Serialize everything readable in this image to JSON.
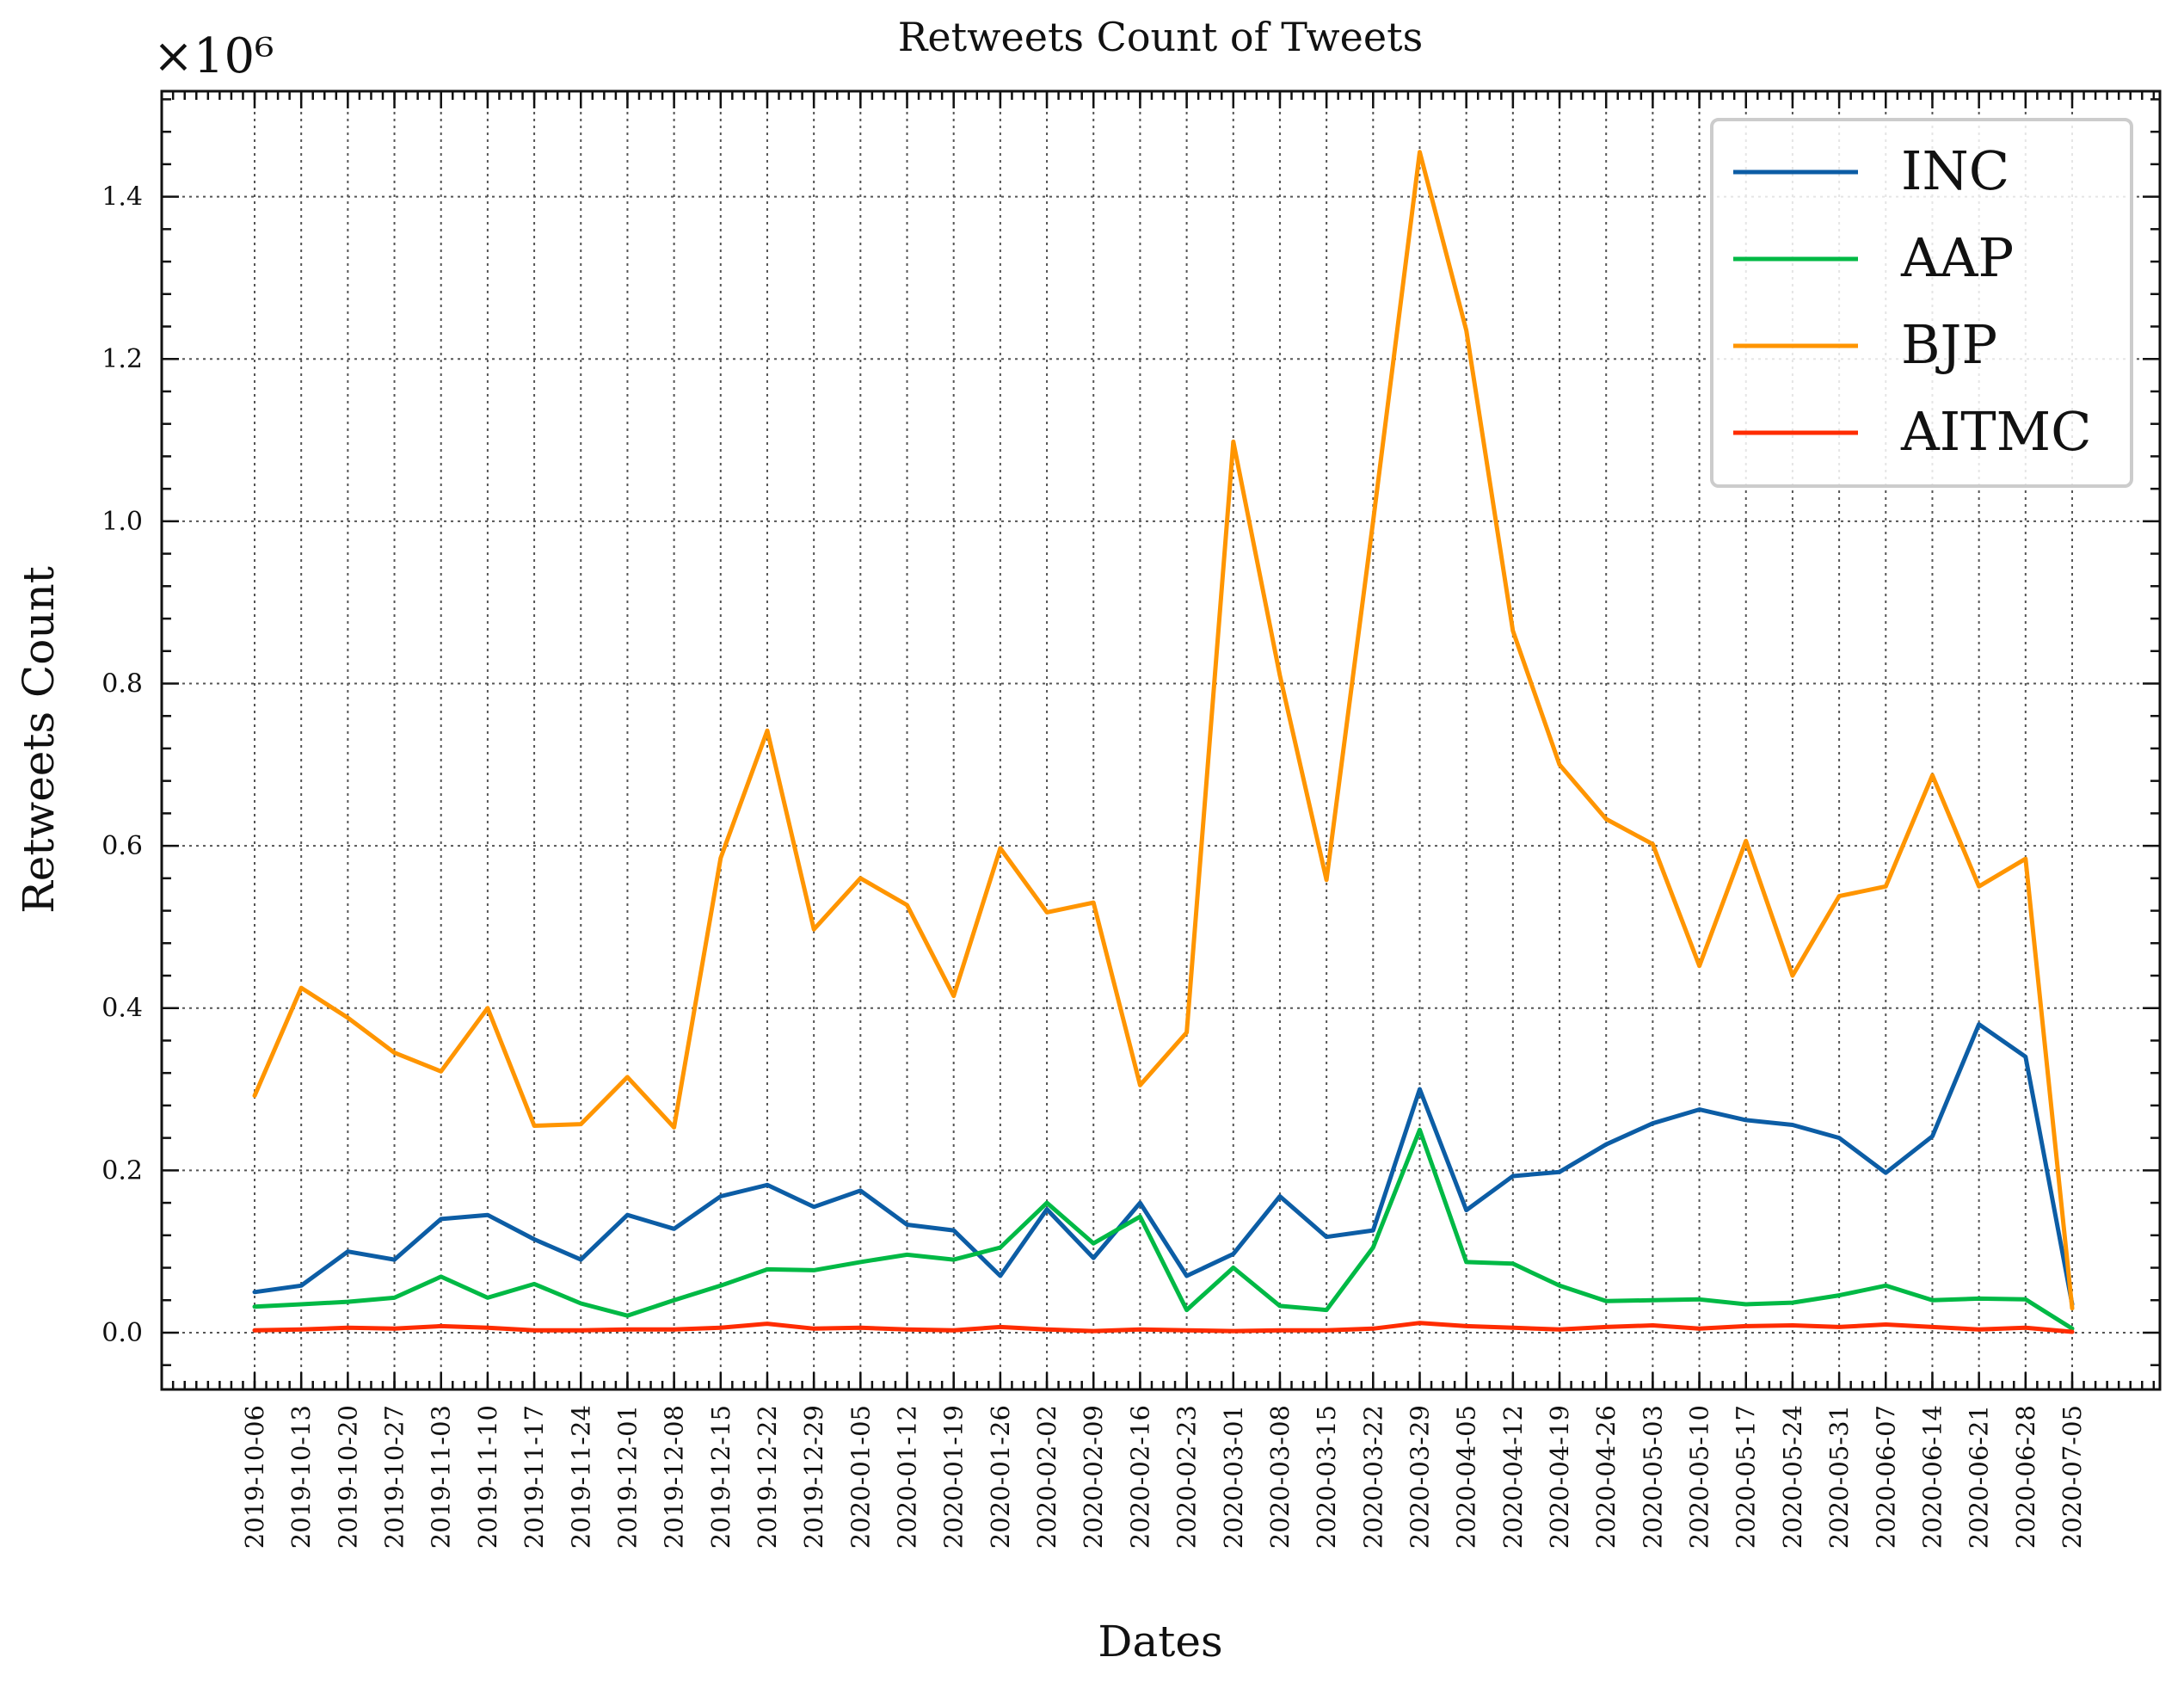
{
  "colors": {
    "INC": "#0C5DA5",
    "AAP": "#00B945",
    "BJP": "#FF9500",
    "AITMC": "#FF2C00"
  },
  "chart_data": {
    "type": "line",
    "title": "Retweets Count of Tweets",
    "xlabel": "Dates",
    "ylabel": "Retweets Count",
    "y_multiplier_label": "×10⁶",
    "ylim": [
      -0.07,
      1.53
    ],
    "yticks": [
      0.0,
      0.2,
      0.4,
      0.6,
      0.8,
      1.0,
      1.2,
      1.4
    ],
    "ytick_labels": [
      "0.0",
      "0.2",
      "0.4",
      "0.6",
      "0.8",
      "1.0",
      "1.2",
      "1.4"
    ],
    "grid": true,
    "legend_position": "top-right",
    "x": [
      "2019-10-06",
      "2019-10-13",
      "2019-10-20",
      "2019-10-27",
      "2019-11-03",
      "2019-11-10",
      "2019-11-17",
      "2019-11-24",
      "2019-12-01",
      "2019-12-08",
      "2019-12-15",
      "2019-12-22",
      "2019-12-29",
      "2020-01-05",
      "2020-01-12",
      "2020-01-19",
      "2020-01-26",
      "2020-02-02",
      "2020-02-09",
      "2020-02-16",
      "2020-02-23",
      "2020-03-01",
      "2020-03-08",
      "2020-03-15",
      "2020-03-22",
      "2020-03-29",
      "2020-04-05",
      "2020-04-12",
      "2020-04-19",
      "2020-04-26",
      "2020-05-03",
      "2020-05-10",
      "2020-05-17",
      "2020-05-24",
      "2020-05-31",
      "2020-06-07",
      "2020-06-14",
      "2020-06-21",
      "2020-06-28",
      "2020-07-05"
    ],
    "series": [
      {
        "name": "INC",
        "values": [
          0.05,
          0.058,
          0.1,
          0.09,
          0.14,
          0.145,
          0.115,
          0.09,
          0.145,
          0.128,
          0.168,
          0.182,
          0.155,
          0.175,
          0.133,
          0.126,
          0.07,
          0.152,
          0.092,
          0.16,
          0.07,
          0.097,
          0.168,
          0.118,
          0.126,
          0.3,
          0.151,
          0.193,
          0.198,
          0.232,
          0.258,
          0.275,
          0.262,
          0.256,
          0.24,
          0.197,
          0.242,
          0.38,
          0.34,
          0.035
        ]
      },
      {
        "name": "AAP",
        "values": [
          0.032,
          0.035,
          0.038,
          0.043,
          0.069,
          0.043,
          0.06,
          0.036,
          0.021,
          0.04,
          0.058,
          0.078,
          0.077,
          0.087,
          0.096,
          0.09,
          0.105,
          0.16,
          0.11,
          0.143,
          0.028,
          0.08,
          0.033,
          0.028,
          0.105,
          0.25,
          0.087,
          0.085,
          0.058,
          0.039,
          0.04,
          0.041,
          0.035,
          0.037,
          0.046,
          0.058,
          0.04,
          0.042,
          0.041,
          0.005
        ]
      },
      {
        "name": "BJP",
        "values": [
          0.292,
          0.425,
          0.388,
          0.345,
          0.322,
          0.4,
          0.255,
          0.257,
          0.315,
          0.253,
          0.585,
          0.742,
          0.497,
          0.56,
          0.527,
          0.415,
          0.597,
          0.518,
          0.53,
          0.305,
          0.37,
          1.098,
          0.81,
          0.558,
          1.0,
          1.455,
          1.235,
          0.865,
          0.7,
          0.633,
          0.602,
          0.452,
          0.606,
          0.44,
          0.538,
          0.55,
          0.687,
          0.55,
          0.584,
          0.03
        ]
      },
      {
        "name": "AITMC",
        "values": [
          0.003,
          0.004,
          0.006,
          0.005,
          0.008,
          0.006,
          0.003,
          0.003,
          0.004,
          0.004,
          0.006,
          0.011,
          0.005,
          0.006,
          0.004,
          0.003,
          0.007,
          0.004,
          0.002,
          0.004,
          0.003,
          0.002,
          0.003,
          0.003,
          0.005,
          0.012,
          0.008,
          0.006,
          0.004,
          0.007,
          0.009,
          0.005,
          0.008,
          0.009,
          0.007,
          0.01,
          0.007,
          0.004,
          0.006,
          0.001
        ]
      }
    ]
  }
}
